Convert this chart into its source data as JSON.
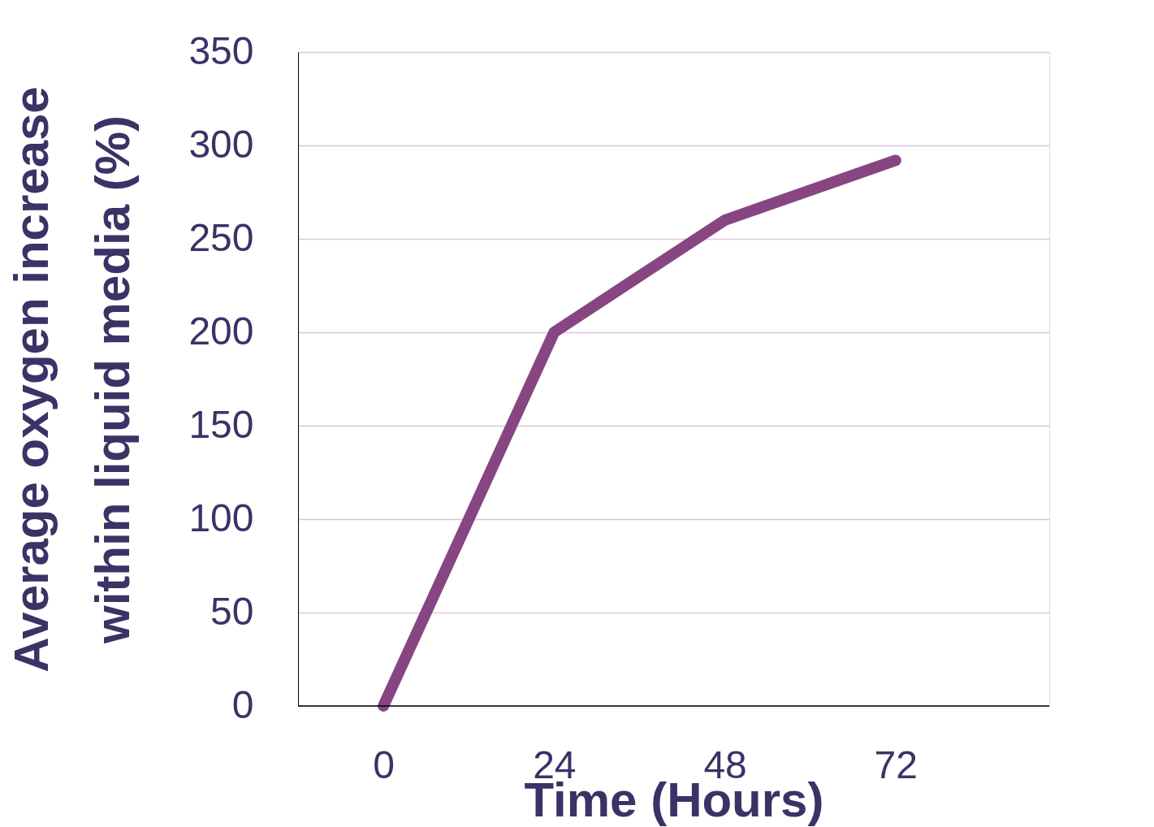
{
  "chart_data": {
    "type": "line",
    "xlabel": "Time (Hours)",
    "ylabel": "Average oxygen increase\nwithin liquid media (%)",
    "categories": [
      "0",
      "24",
      "48",
      "72"
    ],
    "series": [
      {
        "color": "#874582",
        "values": [
          0,
          200,
          260,
          292
        ]
      }
    ],
    "ylim": [
      0,
      350
    ],
    "yticks": [
      0,
      50,
      100,
      150,
      200,
      250,
      300,
      350
    ],
    "grid": "y",
    "line_style": "solid",
    "marker": "none"
  }
}
